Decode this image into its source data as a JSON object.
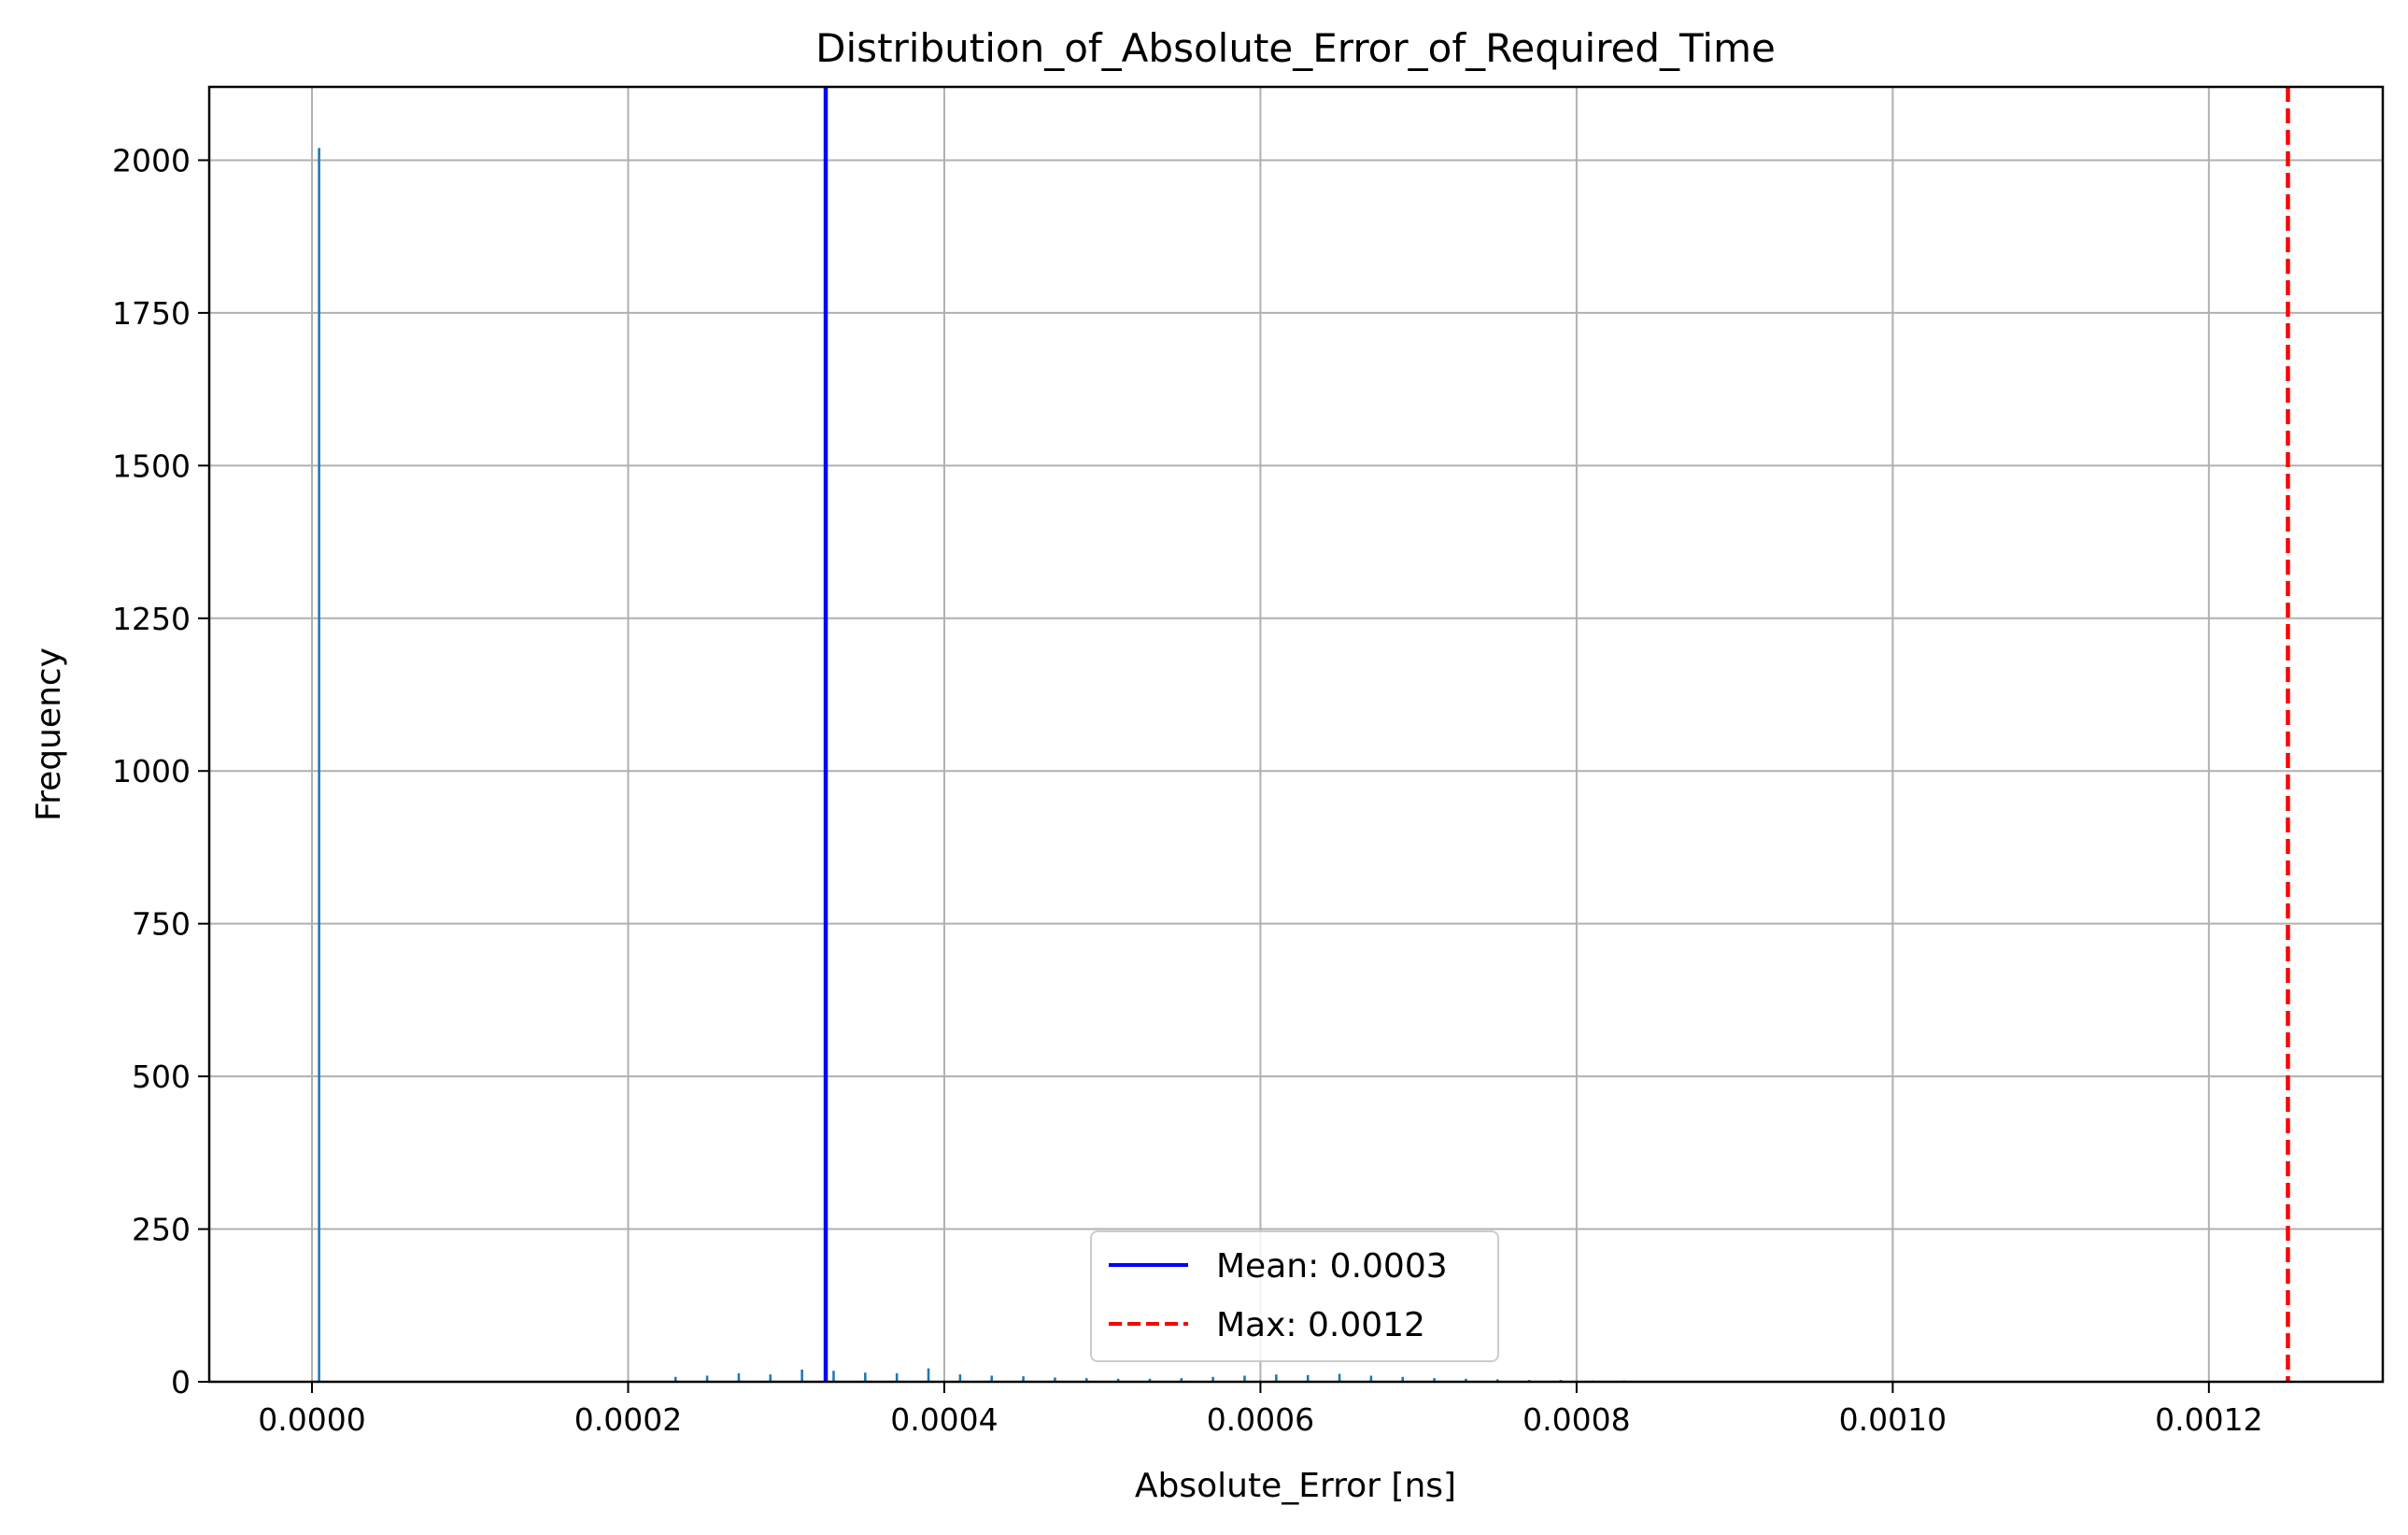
{
  "chart_data": {
    "type": "histogram",
    "title": "Distribution_of_Absolute_Error_of_Required_Time",
    "xlabel": "Absolute_Error [ns]",
    "ylabel": "Frequency",
    "xlim": [
      -6.5e-05,
      0.00131
    ],
    "ylim": [
      0,
      2120
    ],
    "grid": true,
    "x_ticks": [
      0.0,
      0.0002,
      0.0004,
      0.0006,
      0.0008,
      0.001,
      0.0012
    ],
    "x_tick_labels": [
      "0.0000",
      "0.0002",
      "0.0004",
      "0.0006",
      "0.0008",
      "0.0010",
      "0.0012"
    ],
    "y_ticks": [
      0,
      250,
      500,
      750,
      1000,
      1250,
      1500,
      1750,
      2000
    ],
    "y_tick_labels": [
      "0",
      "250",
      "500",
      "750",
      "1000",
      "1250",
      "1500",
      "1750",
      "2000"
    ],
    "bar_color": "#1f77b4",
    "bins": [
      {
        "x": 4.5e-06,
        "value": 2020
      },
      {
        "x": 0.00023,
        "value": 8
      },
      {
        "x": 0.00025,
        "value": 10
      },
      {
        "x": 0.00027,
        "value": 14
      },
      {
        "x": 0.00029,
        "value": 12
      },
      {
        "x": 0.00031,
        "value": 20
      },
      {
        "x": 0.00033,
        "value": 18
      },
      {
        "x": 0.00035,
        "value": 15
      },
      {
        "x": 0.00037,
        "value": 14
      },
      {
        "x": 0.00039,
        "value": 22
      },
      {
        "x": 0.00041,
        "value": 12
      },
      {
        "x": 0.00043,
        "value": 10
      },
      {
        "x": 0.00045,
        "value": 9
      },
      {
        "x": 0.00047,
        "value": 7
      },
      {
        "x": 0.00049,
        "value": 6
      },
      {
        "x": 0.00051,
        "value": 5
      },
      {
        "x": 0.00053,
        "value": 5
      },
      {
        "x": 0.00055,
        "value": 6
      },
      {
        "x": 0.00057,
        "value": 8
      },
      {
        "x": 0.00059,
        "value": 10
      },
      {
        "x": 0.00061,
        "value": 12
      },
      {
        "x": 0.00063,
        "value": 11
      },
      {
        "x": 0.00065,
        "value": 13
      },
      {
        "x": 0.00067,
        "value": 10
      },
      {
        "x": 0.00069,
        "value": 8
      },
      {
        "x": 0.00071,
        "value": 6
      },
      {
        "x": 0.00073,
        "value": 5
      },
      {
        "x": 0.00075,
        "value": 4
      },
      {
        "x": 0.00077,
        "value": 3
      },
      {
        "x": 0.00079,
        "value": 3
      },
      {
        "x": 0.00081,
        "value": 2
      },
      {
        "x": 0.00083,
        "value": 2
      },
      {
        "x": 0.00085,
        "value": 1
      },
      {
        "x": 0.00087,
        "value": 1
      },
      {
        "x": 0.00089,
        "value": 1
      },
      {
        "x": 0.00091,
        "value": 1
      }
    ],
    "bin_width": 1.5e-06,
    "reference_lines": [
      {
        "name": "Mean: 0.0003",
        "x": 0.000325,
        "color": "#0000ff",
        "style": "solid"
      },
      {
        "name": "Max: 0.0012",
        "x": 0.00125,
        "color": "#ff0000",
        "style": "dashed"
      }
    ],
    "legend": {
      "placement": "lower-center",
      "entries": [
        "Mean: 0.0003",
        "Max: 0.0012"
      ]
    }
  }
}
